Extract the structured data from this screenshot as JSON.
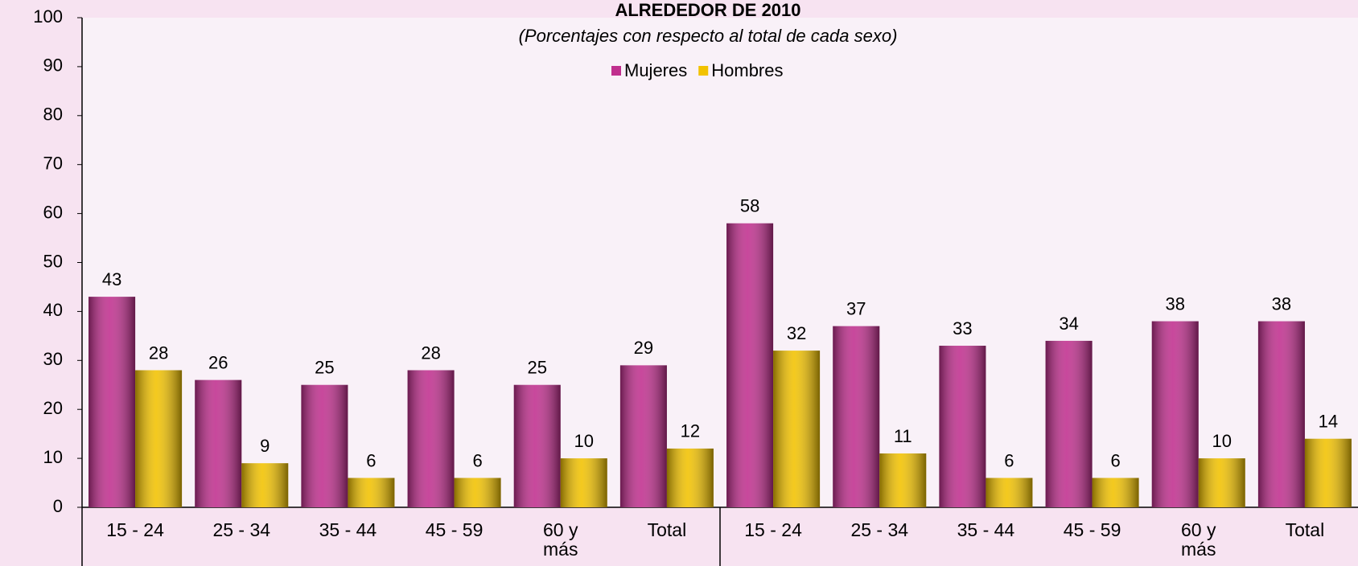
{
  "chart_data": {
    "type": "bar",
    "title": "ALREDEDOR DE 2010",
    "subtitle": "(Porcentajes con respecto al total de cada sexo)",
    "categories": [
      "15 - 24",
      "25 - 34",
      "35 - 44",
      "45 - 59",
      "60 y más",
      "Total",
      "15 - 24",
      "25 - 34",
      "35 - 44",
      "45 - 59",
      "60 y más",
      "Total"
    ],
    "series": [
      {
        "name": "Mujeres",
        "color": "#c02f8e",
        "values": [
          43,
          26,
          25,
          28,
          25,
          29,
          58,
          37,
          33,
          34,
          38,
          38
        ]
      },
      {
        "name": "Hombres",
        "color": "#f2c200",
        "values": [
          28,
          9,
          6,
          6,
          10,
          12,
          32,
          11,
          6,
          6,
          10,
          14
        ]
      }
    ],
    "ylim": [
      0,
      100
    ],
    "yticks": [
      0,
      10,
      20,
      30,
      40,
      50,
      60,
      70,
      80,
      90,
      100
    ],
    "legend": "top"
  }
}
